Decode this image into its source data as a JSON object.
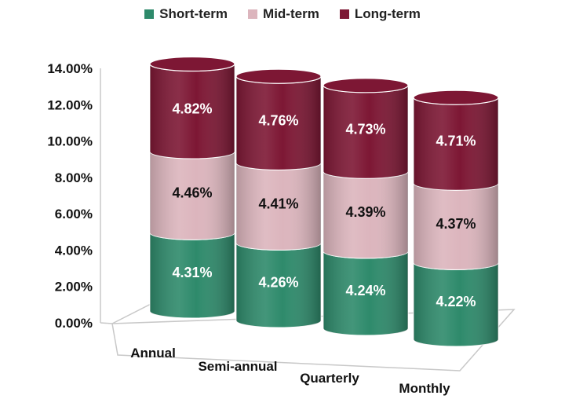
{
  "chart_data": {
    "type": "bar",
    "stacked": true,
    "style": "3d-cylinder",
    "categories": [
      "Annual",
      "Semi-annual",
      "Quarterly",
      "Monthly"
    ],
    "series": [
      {
        "name": "Short-term",
        "color": "#2e8a6b",
        "values": [
          4.31,
          4.26,
          4.24,
          4.22
        ],
        "labels": [
          "4.31%",
          "4.26%",
          "4.24%",
          "4.22%"
        ]
      },
      {
        "name": "Mid-term",
        "color": "#dcb5bd",
        "values": [
          4.46,
          4.41,
          4.39,
          4.37
        ],
        "labels": [
          "4.46%",
          "4.41%",
          "4.39%",
          "4.37%"
        ]
      },
      {
        "name": "Long-term",
        "color": "#7d1734",
        "values": [
          4.82,
          4.76,
          4.73,
          4.71
        ],
        "labels": [
          "4.82%",
          "4.76%",
          "4.73%",
          "4.71%"
        ]
      }
    ],
    "yticks": [
      "0.00%",
      "2.00%",
      "4.00%",
      "6.00%",
      "8.00%",
      "10.00%",
      "12.00%",
      "14.00%"
    ],
    "ylim": [
      0,
      14
    ],
    "legend_position": "top-center",
    "grid": false
  }
}
